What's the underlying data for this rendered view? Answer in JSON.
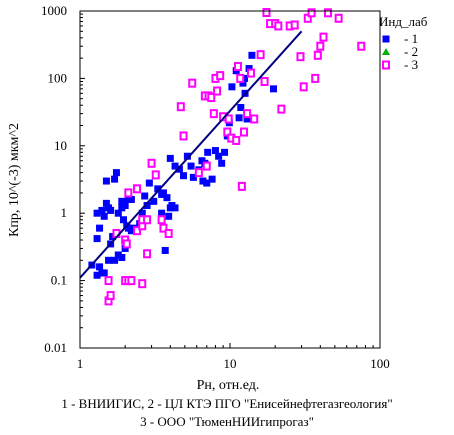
{
  "chart_data": {
    "type": "scatter",
    "x_scale": "log",
    "y_scale": "log",
    "xlabel": "Рн, отн.ед.",
    "ylabel": "Кпр, 10^(-3) мкм^2",
    "xlim": [
      1,
      100
    ],
    "ylim": [
      0.01,
      1000
    ],
    "x_ticks": [
      1,
      10,
      100
    ],
    "x_tick_labels": [
      "1",
      "10",
      "100"
    ],
    "y_ticks": [
      0.01,
      0.1,
      1,
      10,
      100,
      1000
    ],
    "y_tick_labels": [
      "0.01",
      "0.1",
      "1",
      "10",
      "100",
      "1000"
    ],
    "grid": false,
    "legend_title": "Инд_лаб",
    "legend_position": "right",
    "colors": {
      "frame": "#000000",
      "trend": "#000080"
    },
    "series": [
      {
        "name": "1",
        "marker": "filled-square",
        "color": "#0000ff",
        "points": [
          [
            1.2,
            0.17
          ],
          [
            1.3,
            0.12
          ],
          [
            1.35,
            0.16
          ],
          [
            1.4,
            0.13
          ],
          [
            1.45,
            0.13
          ],
          [
            1.55,
            0.2
          ],
          [
            1.3,
            0.42
          ],
          [
            1.35,
            0.6
          ],
          [
            1.3,
            1.0
          ],
          [
            1.4,
            1.1
          ],
          [
            1.45,
            0.9
          ],
          [
            1.5,
            1.4
          ],
          [
            1.55,
            1.2
          ],
          [
            1.6,
            1.1
          ],
          [
            1.5,
            3.0
          ],
          [
            1.7,
            3.2
          ],
          [
            1.75,
            4.0
          ],
          [
            1.8,
            1.0
          ],
          [
            1.9,
            1.2
          ],
          [
            1.9,
            1.5
          ],
          [
            2.0,
            1.3
          ],
          [
            2.1,
            1.6
          ],
          [
            2.2,
            1.6
          ],
          [
            1.95,
            0.8
          ],
          [
            2.05,
            0.65
          ],
          [
            2.1,
            0.6
          ],
          [
            2.2,
            0.55
          ],
          [
            2.3,
            0.6
          ],
          [
            2.4,
            0.55
          ],
          [
            2.5,
            0.7
          ],
          [
            1.7,
            0.2
          ],
          [
            1.8,
            0.24
          ],
          [
            1.9,
            0.22
          ],
          [
            2.0,
            0.3
          ],
          [
            1.75,
            0.5
          ],
          [
            1.65,
            0.45
          ],
          [
            1.6,
            0.35
          ],
          [
            2.6,
            1.0
          ],
          [
            2.7,
            1.8
          ],
          [
            2.8,
            1.3
          ],
          [
            2.9,
            2.8
          ],
          [
            3.1,
            1.5
          ],
          [
            3.3,
            2.3
          ],
          [
            3.5,
            1.9
          ],
          [
            3.6,
            2.0
          ],
          [
            3.8,
            1.7
          ],
          [
            3.5,
            1.0
          ],
          [
            4.0,
            1.2
          ],
          [
            4.1,
            1.3
          ],
          [
            4.3,
            1.2
          ],
          [
            3.9,
            0.9
          ],
          [
            3.7,
            0.28
          ],
          [
            4.0,
            6.5
          ],
          [
            4.3,
            5.0
          ],
          [
            4.6,
            4.5
          ],
          [
            4.9,
            3.6
          ],
          [
            5.2,
            7.0
          ],
          [
            5.5,
            5.0
          ],
          [
            5.7,
            3.4
          ],
          [
            6.2,
            4.4
          ],
          [
            6.5,
            6.0
          ],
          [
            6.8,
            5.5
          ],
          [
            7.1,
            8.0
          ],
          [
            6.6,
            3.0
          ],
          [
            7.0,
            2.8
          ],
          [
            7.6,
            3.2
          ],
          [
            8.0,
            8.5
          ],
          [
            8.4,
            7.0
          ],
          [
            8.8,
            5.5
          ],
          [
            9.2,
            8.0
          ],
          [
            9.6,
            14.0
          ],
          [
            9.9,
            22.0
          ],
          [
            10.3,
            75.0
          ],
          [
            11.0,
            130.0
          ],
          [
            11.5,
            26.0
          ],
          [
            11.8,
            37.0
          ],
          [
            12.2,
            85.0
          ],
          [
            12.5,
            100.0
          ],
          [
            12.6,
            60.0
          ],
          [
            13.0,
            25.0
          ],
          [
            13.4,
            140.0
          ],
          [
            14.0,
            220.0
          ],
          [
            19.5,
            70.0
          ]
        ]
      },
      {
        "name": "2",
        "marker": "filled-triangle",
        "color": "#00b000",
        "points": []
      },
      {
        "name": "3",
        "marker": "hollow-square",
        "color": "#ff00ff",
        "points": [
          [
            1.55,
            0.05
          ],
          [
            1.6,
            0.06
          ],
          [
            1.55,
            0.1
          ],
          [
            2.0,
            0.1
          ],
          [
            2.1,
            0.1
          ],
          [
            2.2,
            0.1
          ],
          [
            2.6,
            0.09
          ],
          [
            1.75,
            0.5
          ],
          [
            2.0,
            0.4
          ],
          [
            2.05,
            0.35
          ],
          [
            2.4,
            0.55
          ],
          [
            2.6,
            0.65
          ],
          [
            2.8,
            0.25
          ],
          [
            2.1,
            2.0
          ],
          [
            2.4,
            2.3
          ],
          [
            2.6,
            0.8
          ],
          [
            2.8,
            0.8
          ],
          [
            3.0,
            5.5
          ],
          [
            3.2,
            3.7
          ],
          [
            3.5,
            0.8
          ],
          [
            3.6,
            0.6
          ],
          [
            3.9,
            0.5
          ],
          [
            4.7,
            38.0
          ],
          [
            4.9,
            14.0
          ],
          [
            5.6,
            85.0
          ],
          [
            6.2,
            4.0
          ],
          [
            6.8,
            55.0
          ],
          [
            7.0,
            5.0
          ],
          [
            7.2,
            55.0
          ],
          [
            7.5,
            52.0
          ],
          [
            7.8,
            30.0
          ],
          [
            8.0,
            100.0
          ],
          [
            8.2,
            65.0
          ],
          [
            8.6,
            110.0
          ],
          [
            9.0,
            27.0
          ],
          [
            9.6,
            16.0
          ],
          [
            9.8,
            25.0
          ],
          [
            10.2,
            13.0
          ],
          [
            11.0,
            12.0
          ],
          [
            11.3,
            150.0
          ],
          [
            11.7,
            100.0
          ],
          [
            12.0,
            2.5
          ],
          [
            12.4,
            16.0
          ],
          [
            13.0,
            30.0
          ],
          [
            13.8,
            120.0
          ],
          [
            14.5,
            25.0
          ],
          [
            16.0,
            225.0
          ],
          [
            17.0,
            90.0
          ],
          [
            17.5,
            950.0
          ],
          [
            18.5,
            650.0
          ],
          [
            20.0,
            650.0
          ],
          [
            21.0,
            600.0
          ],
          [
            22.0,
            35.0
          ],
          [
            25.0,
            600.0
          ],
          [
            27.0,
            620.0
          ],
          [
            29.5,
            210.0
          ],
          [
            31.0,
            75.0
          ],
          [
            33.0,
            780.0
          ],
          [
            35.0,
            940.0
          ],
          [
            37.0,
            100.0
          ],
          [
            38.5,
            220.0
          ],
          [
            40.0,
            300.0
          ],
          [
            42.0,
            410.0
          ],
          [
            45.0,
            940.0
          ],
          [
            53.0,
            780.0
          ],
          [
            75.0,
            300.0
          ]
        ]
      }
    ],
    "trend_line": {
      "x": [
        1,
        30
      ],
      "y": [
        0.11,
        500
      ]
    }
  },
  "caption": {
    "line1": "1 - ВНИИГИС, 2 - ЦЛ КТЭ ПГО \"Енисейнефтегазгеология\"",
    "line2": "3 -  ООО \"ТюменНИИгипрогаз\""
  }
}
